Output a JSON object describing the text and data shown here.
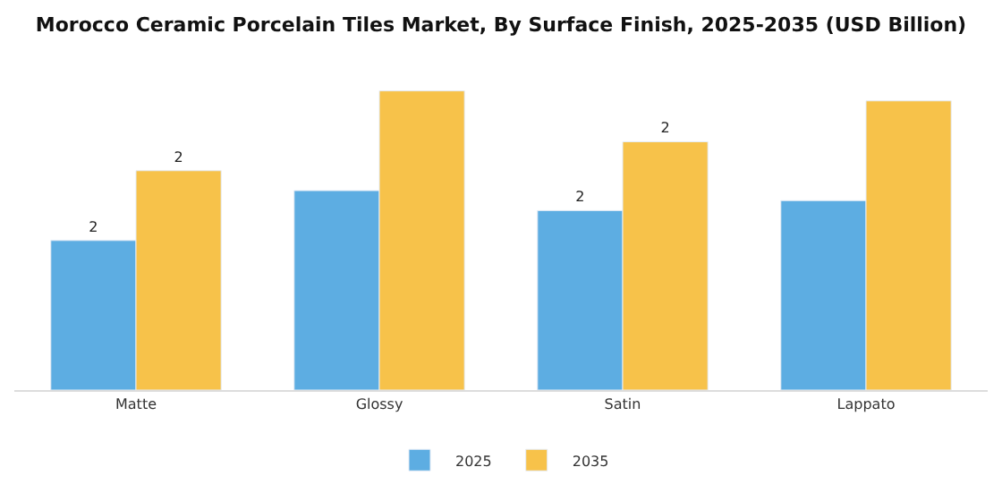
{
  "chart_data": {
    "type": "bar",
    "title": "Morocco Ceramic Porcelain Tiles Market, By Surface Finish, 2025-2035 (USD Billion)",
    "categories": [
      "Matte",
      "Glossy",
      "Satin",
      "Lappato"
    ],
    "series": [
      {
        "name": "2025",
        "color": "#5dade2",
        "values": [
          1.5,
          2.0,
          1.8,
          1.9
        ],
        "value_labels": [
          "2",
          null,
          "2",
          null
        ]
      },
      {
        "name": "2035",
        "color": "#f7c24a",
        "values": [
          2.2,
          3.0,
          2.49,
          2.9
        ],
        "value_labels": [
          "2",
          null,
          "2",
          null
        ]
      }
    ],
    "legend": "bottom"
  }
}
